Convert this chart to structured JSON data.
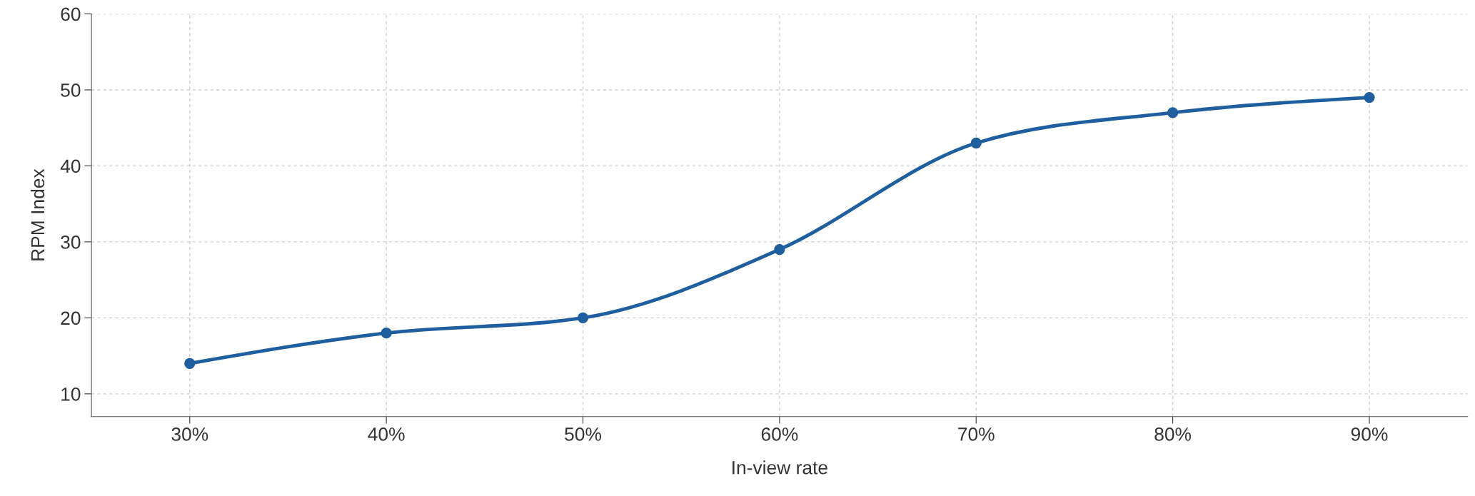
{
  "chart_data": {
    "type": "line",
    "xlabel": "In-view rate",
    "ylabel": "RPM Index",
    "x": [
      30,
      40,
      50,
      60,
      70,
      80,
      90
    ],
    "series": [
      {
        "color": "#1f5f9f",
        "values": [
          14,
          18,
          20,
          29,
          43,
          47,
          49
        ]
      }
    ],
    "xlim": [
      25,
      95
    ],
    "xticks": [
      {
        "value": 30,
        "label": "30%"
      },
      {
        "value": 40,
        "label": "40%"
      },
      {
        "value": 50,
        "label": "50%"
      },
      {
        "value": 60,
        "label": "60%"
      },
      {
        "value": 70,
        "label": "70%"
      },
      {
        "value": 80,
        "label": "80%"
      },
      {
        "value": 90,
        "label": "90%"
      }
    ],
    "ylim": [
      7,
      60
    ],
    "yticks": [
      10,
      20,
      30,
      40,
      50,
      60
    ],
    "grid": true,
    "marker": "circle",
    "line_style": "solid"
  }
}
